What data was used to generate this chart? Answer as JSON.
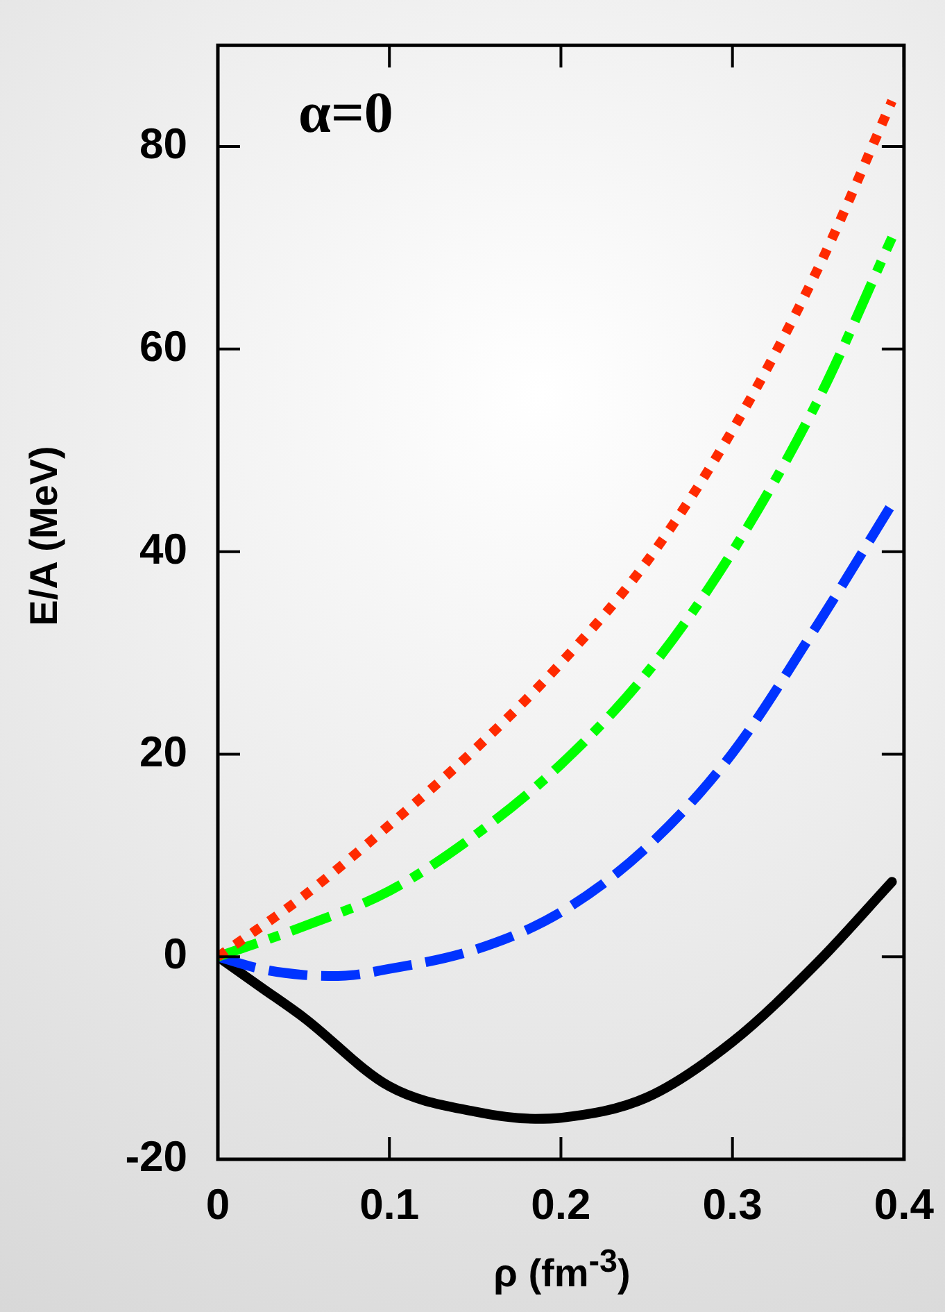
{
  "chart_data": {
    "type": "line",
    "xlabel": "ρ (fm$^{-3}$)",
    "ylabel": "E/A (MeV)",
    "annotations": [
      "α=0"
    ],
    "xlim": [
      0,
      0.4
    ],
    "xticks": [
      0,
      0.1,
      0.2,
      0.3,
      0.4
    ],
    "ylim": [
      -20,
      90
    ],
    "yticks": [
      -20,
      0,
      20,
      40,
      60,
      80
    ],
    "grid": false,
    "legend": false,
    "marker": "none",
    "series": [
      {
        "color": "#ff2a00",
        "line_style": "dotted",
        "x": [
          0,
          0.05,
          0.1,
          0.15,
          0.2,
          0.25,
          0.3,
          0.35,
          0.393
        ],
        "values": [
          0,
          6,
          13,
          20.5,
          29,
          39,
          52,
          68,
          84.5
        ]
      },
      {
        "color": "#00ff00",
        "line_style": "dashdot",
        "x": [
          0,
          0.05,
          0.1,
          0.15,
          0.2,
          0.25,
          0.3,
          0.35,
          0.393
        ],
        "values": [
          0,
          3,
          6.5,
          12,
          19,
          28,
          40,
          55,
          71
        ]
      },
      {
        "color": "#0033ff",
        "line_style": "dashed",
        "x": [
          0,
          0.025,
          0.05,
          0.07,
          0.1,
          0.15,
          0.2,
          0.25,
          0.3,
          0.35,
          0.393
        ],
        "values": [
          0,
          -1.2,
          -1.8,
          -1.9,
          -1.2,
          0.7,
          4.4,
          10.8,
          20.1,
          32.9,
          44.7
        ]
      },
      {
        "color": "#000000",
        "line_style": "solid",
        "x": [
          0,
          0.025,
          0.05,
          0.1,
          0.15,
          0.185,
          0.2,
          0.25,
          0.3,
          0.35,
          0.393
        ],
        "values": [
          0,
          -3,
          -6,
          -12.8,
          -15.3,
          -16,
          -15.9,
          -13.9,
          -8.4,
          -0.5,
          7.4
        ]
      }
    ]
  }
}
